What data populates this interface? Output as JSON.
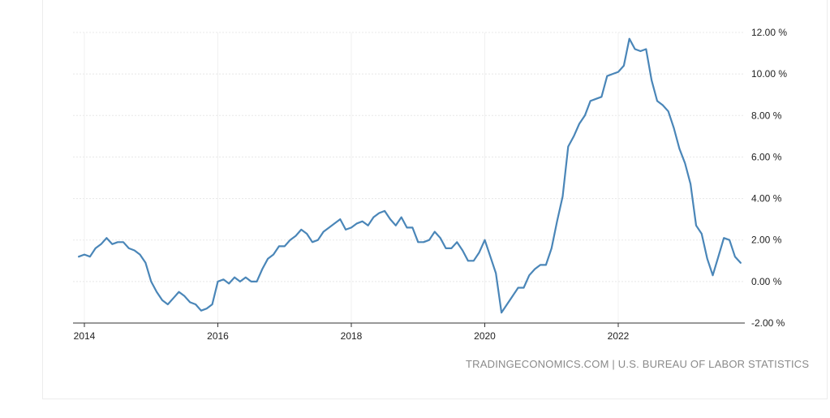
{
  "source_label": "TRADINGECONOMICS.COM | U.S. BUREAU OF LABOR STATISTICS",
  "colors": {
    "line": "#4a86b8",
    "grid": "#e8e8e8",
    "axis": "#333333",
    "text": "#222222",
    "source": "#8a8a8a"
  },
  "chart_data": {
    "type": "line",
    "title": "",
    "xlabel": "",
    "ylabel": "",
    "x_ticks": [
      "2014",
      "2016",
      "2018",
      "2020",
      "2022"
    ],
    "y_ticks": [
      12,
      10,
      8,
      6,
      4,
      2,
      0,
      -2
    ],
    "y_tick_labels": [
      "12.00 %",
      "10.00 %",
      "8.00 %",
      "6.00 %",
      "4.00 %",
      "2.00 %",
      "0.00 %",
      "-2.00 %"
    ],
    "ylim": [
      -2,
      12
    ],
    "xlim": [
      "2013-11",
      "2024-01"
    ],
    "y_axis_position": "right",
    "grid": true,
    "series": [
      {
        "x": [
          "2013-12",
          "2014-01",
          "2014-02",
          "2014-03",
          "2014-04",
          "2014-05",
          "2014-06",
          "2014-07",
          "2014-08",
          "2014-09",
          "2014-10",
          "2014-11",
          "2014-12",
          "2015-01",
          "2015-02",
          "2015-03",
          "2015-04",
          "2015-05",
          "2015-06",
          "2015-07",
          "2015-08",
          "2015-09",
          "2015-10",
          "2015-11",
          "2015-12",
          "2016-01",
          "2016-02",
          "2016-03",
          "2016-04",
          "2016-05",
          "2016-06",
          "2016-07",
          "2016-08",
          "2016-09",
          "2016-10",
          "2016-11",
          "2016-12",
          "2017-01",
          "2017-02",
          "2017-03",
          "2017-04",
          "2017-05",
          "2017-06",
          "2017-07",
          "2017-08",
          "2017-09",
          "2017-10",
          "2017-11",
          "2017-12",
          "2018-01",
          "2018-02",
          "2018-03",
          "2018-04",
          "2018-05",
          "2018-06",
          "2018-07",
          "2018-08",
          "2018-09",
          "2018-10",
          "2018-11",
          "2018-12",
          "2019-01",
          "2019-02",
          "2019-03",
          "2019-04",
          "2019-05",
          "2019-06",
          "2019-07",
          "2019-08",
          "2019-09",
          "2019-10",
          "2019-11",
          "2019-12",
          "2020-01",
          "2020-02",
          "2020-03",
          "2020-04",
          "2020-05",
          "2020-06",
          "2020-07",
          "2020-08",
          "2020-09",
          "2020-10",
          "2020-11",
          "2020-12",
          "2021-01",
          "2021-02",
          "2021-03",
          "2021-04",
          "2021-05",
          "2021-06",
          "2021-07",
          "2021-08",
          "2021-09",
          "2021-10",
          "2021-11",
          "2021-12",
          "2022-01",
          "2022-02",
          "2022-03",
          "2022-04",
          "2022-05",
          "2022-06",
          "2022-07",
          "2022-08",
          "2022-09",
          "2022-10",
          "2022-11",
          "2022-12",
          "2023-01",
          "2023-02",
          "2023-03",
          "2023-04",
          "2023-05",
          "2023-06",
          "2023-07",
          "2023-08",
          "2023-09",
          "2023-10",
          "2023-11"
        ],
        "values": [
          1.2,
          1.3,
          1.2,
          1.6,
          1.8,
          2.1,
          1.8,
          1.9,
          1.9,
          1.6,
          1.5,
          1.3,
          0.9,
          0.0,
          -0.5,
          -0.9,
          -1.1,
          -0.8,
          -0.5,
          -0.7,
          -1.0,
          -1.1,
          -1.4,
          -1.3,
          -1.1,
          0.0,
          0.1,
          -0.1,
          0.2,
          0.0,
          0.2,
          0.0,
          0.0,
          0.6,
          1.1,
          1.3,
          1.7,
          1.7,
          2.0,
          2.2,
          2.5,
          2.3,
          1.9,
          2.0,
          2.4,
          2.6,
          2.8,
          3.0,
          2.5,
          2.6,
          2.8,
          2.9,
          2.7,
          3.1,
          3.3,
          3.4,
          3.0,
          2.7,
          3.1,
          2.6,
          2.6,
          1.9,
          1.9,
          2.0,
          2.4,
          2.1,
          1.6,
          1.6,
          1.9,
          1.5,
          1.0,
          1.0,
          1.4,
          2.0,
          1.2,
          0.4,
          -1.5,
          -1.1,
          -0.7,
          -0.3,
          -0.3,
          0.3,
          0.6,
          0.8,
          0.8,
          1.6,
          2.9,
          4.1,
          6.5,
          7.0,
          7.6,
          8.0,
          8.7,
          8.8,
          8.9,
          9.9,
          10.0,
          10.1,
          10.4,
          11.7,
          11.2,
          11.1,
          11.2,
          9.7,
          8.7,
          8.5,
          8.2,
          7.4,
          6.4,
          5.7,
          4.7,
          2.7,
          2.3,
          1.1,
          0.3,
          1.2,
          2.1,
          2.0,
          1.2,
          0.9
        ]
      }
    ]
  }
}
